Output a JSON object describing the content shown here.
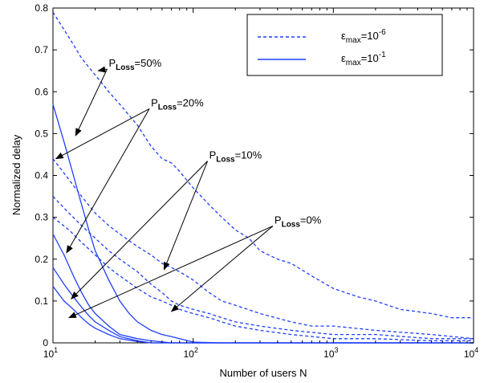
{
  "chart_data": {
    "type": "line",
    "xlabel": "Number of users N",
    "ylabel": "Normalized delay",
    "xscale": "log",
    "xlim": [
      10,
      10000
    ],
    "ylim": [
      0,
      0.8
    ],
    "grid": false,
    "legend_position": "top-right",
    "x_ticks": [
      {
        "value": 10,
        "base": "10",
        "exp": "1"
      },
      {
        "value": 100,
        "base": "10",
        "exp": "2"
      },
      {
        "value": 1000,
        "base": "10",
        "exp": "3"
      },
      {
        "value": 10000,
        "base": "10",
        "exp": "4"
      }
    ],
    "y_ticks": [
      {
        "value": 0,
        "label": "0"
      },
      {
        "value": 0.1,
        "label": "0.1"
      },
      {
        "value": 0.2,
        "label": "0.2"
      },
      {
        "value": 0.3,
        "label": "0.3"
      },
      {
        "value": 0.4,
        "label": "0.4"
      },
      {
        "value": 0.5,
        "label": "0.5"
      },
      {
        "value": 0.6,
        "label": "0.6"
      },
      {
        "value": 0.7,
        "label": "0.7"
      },
      {
        "value": 0.8,
        "label": "0.8"
      }
    ],
    "colors": {
      "line": "#1f3fff",
      "axis": "#000000"
    },
    "legend": [
      {
        "style": "dashed",
        "label_base": "ε",
        "label_sub": "max",
        "label_eq": "=10",
        "label_exp": "-6"
      },
      {
        "style": "solid",
        "label_base": "ε",
        "label_sub": "max",
        "label_eq": "=10",
        "label_exp": "-1"
      }
    ],
    "series": [
      {
        "style": "dashed",
        "points": [
          [
            10,
            0.79
          ],
          [
            13,
            0.73
          ],
          [
            16,
            0.68
          ],
          [
            20,
            0.64
          ],
          [
            25,
            0.6
          ],
          [
            30,
            0.57
          ],
          [
            40,
            0.52
          ],
          [
            50,
            0.47
          ],
          [
            60,
            0.44
          ],
          [
            70,
            0.43
          ],
          [
            80,
            0.41
          ],
          [
            100,
            0.37
          ],
          [
            130,
            0.33
          ],
          [
            160,
            0.3
          ],
          [
            200,
            0.27
          ],
          [
            250,
            0.25
          ],
          [
            300,
            0.22
          ],
          [
            400,
            0.2
          ],
          [
            500,
            0.19
          ],
          [
            700,
            0.16
          ],
          [
            1000,
            0.13
          ],
          [
            1500,
            0.11
          ],
          [
            2000,
            0.1
          ],
          [
            3000,
            0.08
          ],
          [
            5000,
            0.07
          ],
          [
            7000,
            0.06
          ],
          [
            10000,
            0.06
          ]
        ]
      },
      {
        "style": "dashed",
        "points": [
          [
            10,
            0.44
          ],
          [
            13,
            0.39
          ],
          [
            16,
            0.35
          ],
          [
            20,
            0.31
          ],
          [
            25,
            0.28
          ],
          [
            30,
            0.26
          ],
          [
            40,
            0.23
          ],
          [
            50,
            0.21
          ],
          [
            60,
            0.19
          ],
          [
            70,
            0.18
          ],
          [
            80,
            0.17
          ],
          [
            100,
            0.15
          ],
          [
            130,
            0.12
          ],
          [
            160,
            0.1
          ],
          [
            200,
            0.09
          ],
          [
            300,
            0.07
          ],
          [
            500,
            0.05
          ],
          [
            700,
            0.04
          ],
          [
            1000,
            0.04
          ],
          [
            2000,
            0.03
          ],
          [
            5000,
            0.02
          ],
          [
            10000,
            0.01
          ]
        ]
      },
      {
        "style": "dashed",
        "points": [
          [
            10,
            0.35
          ],
          [
            13,
            0.31
          ],
          [
            16,
            0.28
          ],
          [
            20,
            0.25
          ],
          [
            25,
            0.22
          ],
          [
            30,
            0.2
          ],
          [
            40,
            0.17
          ],
          [
            50,
            0.14
          ],
          [
            60,
            0.12
          ],
          [
            70,
            0.1
          ],
          [
            80,
            0.09
          ],
          [
            100,
            0.08
          ],
          [
            130,
            0.07
          ],
          [
            160,
            0.06
          ],
          [
            200,
            0.05
          ],
          [
            300,
            0.04
          ],
          [
            500,
            0.03
          ],
          [
            1000,
            0.02
          ],
          [
            2000,
            0.02
          ],
          [
            5000,
            0.01
          ],
          [
            10000,
            0.01
          ]
        ]
      },
      {
        "style": "dashed",
        "points": [
          [
            10,
            0.3
          ],
          [
            13,
            0.27
          ],
          [
            16,
            0.24
          ],
          [
            20,
            0.21
          ],
          [
            25,
            0.18
          ],
          [
            30,
            0.16
          ],
          [
            40,
            0.13
          ],
          [
            50,
            0.11
          ],
          [
            60,
            0.1
          ],
          [
            70,
            0.09
          ],
          [
            80,
            0.08
          ],
          [
            100,
            0.07
          ],
          [
            130,
            0.06
          ],
          [
            160,
            0.05
          ],
          [
            200,
            0.04
          ],
          [
            300,
            0.03
          ],
          [
            500,
            0.02
          ],
          [
            1000,
            0.01
          ],
          [
            2000,
            0.01
          ],
          [
            5000,
            0.005
          ],
          [
            10000,
            0.005
          ]
        ]
      },
      {
        "style": "solid",
        "points": [
          [
            10,
            0.57
          ],
          [
            12,
            0.48
          ],
          [
            14,
            0.4
          ],
          [
            16,
            0.33
          ],
          [
            18,
            0.27
          ],
          [
            20,
            0.22
          ],
          [
            25,
            0.15
          ],
          [
            30,
            0.1
          ],
          [
            35,
            0.07
          ],
          [
            40,
            0.05
          ],
          [
            50,
            0.03
          ],
          [
            60,
            0.02
          ],
          [
            70,
            0.015
          ],
          [
            80,
            0.01
          ],
          [
            100,
            0.002
          ],
          [
            150,
            0
          ],
          [
            1000,
            0
          ],
          [
            10000,
            0
          ]
        ]
      },
      {
        "style": "solid",
        "points": [
          [
            10,
            0.26
          ],
          [
            12,
            0.21
          ],
          [
            14,
            0.16
          ],
          [
            16,
            0.12
          ],
          [
            18,
            0.09
          ],
          [
            20,
            0.07
          ],
          [
            25,
            0.04
          ],
          [
            30,
            0.02
          ],
          [
            40,
            0.01
          ],
          [
            50,
            0.005
          ],
          [
            70,
            0
          ],
          [
            10000,
            0
          ]
        ]
      },
      {
        "style": "solid",
        "points": [
          [
            10,
            0.18
          ],
          [
            12,
            0.14
          ],
          [
            14,
            0.11
          ],
          [
            16,
            0.085
          ],
          [
            18,
            0.065
          ],
          [
            20,
            0.05
          ],
          [
            25,
            0.03
          ],
          [
            30,
            0.015
          ],
          [
            40,
            0.005
          ],
          [
            50,
            0
          ],
          [
            10000,
            0
          ]
        ]
      },
      {
        "style": "solid",
        "points": [
          [
            10,
            0.135
          ],
          [
            12,
            0.1
          ],
          [
            14,
            0.08
          ],
          [
            16,
            0.06
          ],
          [
            18,
            0.045
          ],
          [
            20,
            0.035
          ],
          [
            25,
            0.02
          ],
          [
            30,
            0.01
          ],
          [
            40,
            0.003
          ],
          [
            50,
            0
          ],
          [
            10000,
            0
          ]
        ]
      }
    ],
    "annotations": [
      {
        "base": "P",
        "sub": "Loss",
        "text": "=50%",
        "anchor": [
          25,
          0.66
        ],
        "arrows_to": [
          [
            21,
            0.65
          ],
          [
            14.5,
            0.495
          ]
        ]
      },
      {
        "base": "P",
        "sub": "Loss",
        "text": "=20%",
        "anchor": [
          50,
          0.565
        ],
        "arrows_to": [
          [
            10.5,
            0.44
          ],
          [
            12.5,
            0.215
          ]
        ]
      },
      {
        "base": "P",
        "sub": "Loss",
        "text": "=10%",
        "anchor": [
          130,
          0.44
        ],
        "arrows_to": [
          [
            62,
            0.175
          ],
          [
            13.5,
            0.105
          ]
        ]
      },
      {
        "base": "P",
        "sub": "Loss",
        "text": "=0%",
        "anchor": [
          380,
          0.285
        ],
        "arrows_to": [
          [
            70,
            0.075
          ],
          [
            13,
            0.06
          ]
        ]
      }
    ]
  }
}
